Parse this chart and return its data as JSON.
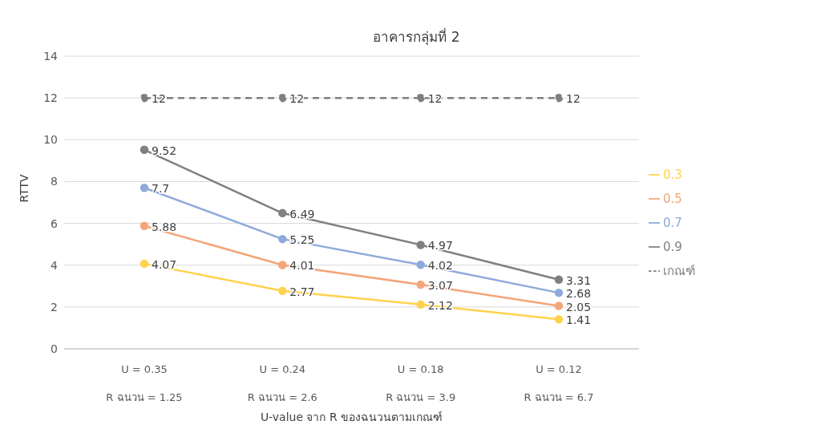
{
  "chart_data": {
    "type": "line",
    "title": "อาคารกลุ่มที่ 2",
    "xlabel": "U-value จาก R ของฉนวนตามเกณฑ์",
    "ylabel": "RTTV",
    "categories": [
      "U = 0.35\nR ฉนวน = 1.25",
      "U = 0.24\nR ฉนวน = 2.6",
      "U = 0.18\nR ฉนวน = 3.9",
      "U = 0.12\nR ฉนวน = 6.7"
    ],
    "series": [
      {
        "name": "0.3",
        "color": "#ffd24d",
        "values": [
          4.07,
          2.77,
          2.12,
          1.41
        ]
      },
      {
        "name": "0.5",
        "color": "#f4a57a",
        "values": [
          5.88,
          4.01,
          3.07,
          2.05
        ]
      },
      {
        "name": "0.7",
        "color": "#8eaadb",
        "values": [
          7.7,
          5.25,
          4.02,
          2.68
        ]
      },
      {
        "name": "0.9",
        "color": "#808080",
        "values": [
          9.52,
          6.49,
          4.97,
          3.31
        ]
      },
      {
        "name": "เกณฑ์",
        "color": "#7f7f7f",
        "values": [
          12,
          12,
          12,
          12
        ],
        "line_style": "dashed"
      }
    ],
    "ylim": [
      0,
      14
    ],
    "yticks": [
      0,
      2,
      4,
      6,
      8,
      10,
      12,
      14
    ],
    "grid": "y",
    "legend": "right",
    "marker": "circle",
    "data_labels": true
  }
}
